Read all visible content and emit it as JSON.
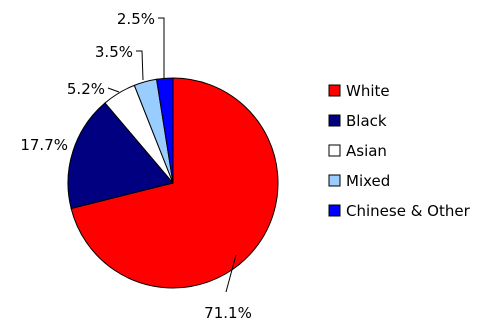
{
  "chart_data": {
    "type": "pie",
    "title": "",
    "start_angle_deg": 0,
    "direction": "clockwise",
    "legend_position": "right",
    "series": [
      {
        "name": "",
        "values": [
          {
            "label": "White",
            "value": 71.1,
            "data_label": "71.1%",
            "color": "#ff0000"
          },
          {
            "label": "Black",
            "value": 17.7,
            "data_label": "17.7%",
            "color": "#000080"
          },
          {
            "label": "Asian",
            "value": 5.2,
            "data_label": "5.2%",
            "color": "#ffffff"
          },
          {
            "label": "Mixed",
            "value": 3.5,
            "data_label": "3.5%",
            "color": "#99ccff"
          },
          {
            "label": "Chinese & Other",
            "value": 2.5,
            "data_label": "2.5%",
            "color": "#0000ff"
          }
        ]
      }
    ]
  }
}
